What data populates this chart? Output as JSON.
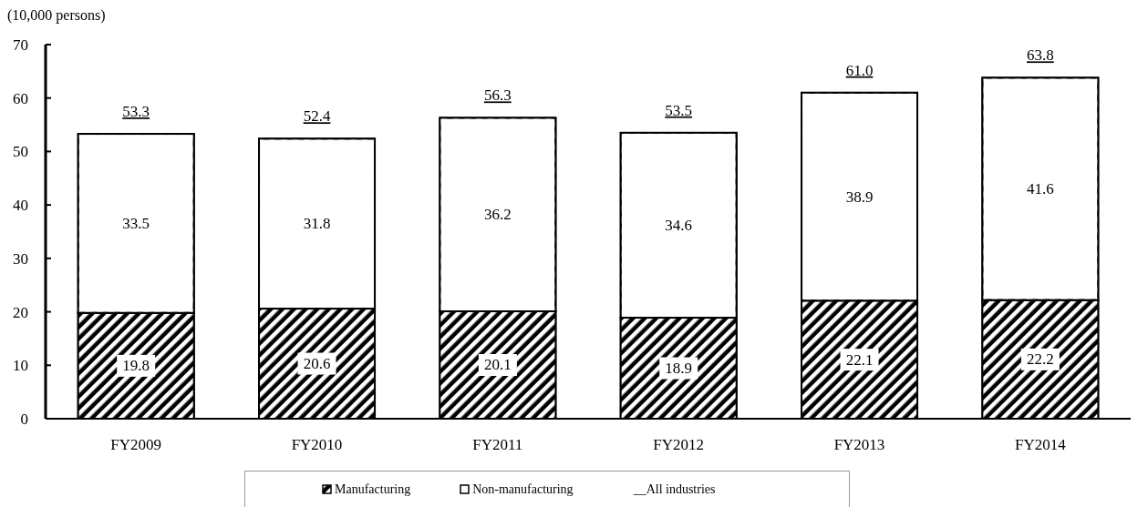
{
  "chart_data": {
    "type": "bar",
    "ylabel": "(10,000 persons)",
    "categories": [
      "FY2009",
      "FY2010",
      "FY2011",
      "FY2012",
      "FY2013",
      "FY2014"
    ],
    "series": [
      {
        "name": "Manufacturing",
        "color": "#000000",
        "values": [
          19.8,
          20.6,
          20.1,
          18.9,
          22.1,
          22.2
        ]
      },
      {
        "name": "Non-manufacturing",
        "color": "#ffffff",
        "values": [
          33.5,
          31.8,
          36.2,
          34.6,
          38.9,
          41.6
        ]
      }
    ],
    "stacked": true,
    "data_labels": true,
    "totals": [
      "53.3",
      "52.4",
      "56.3",
      "53.5",
      "61.0",
      "63.8"
    ],
    "ylim": [
      0,
      70
    ],
    "yticks": [
      0,
      10,
      20,
      30,
      40,
      50,
      60,
      70
    ],
    "legend": "bottom",
    "annotations": [
      "__All industries"
    ]
  }
}
